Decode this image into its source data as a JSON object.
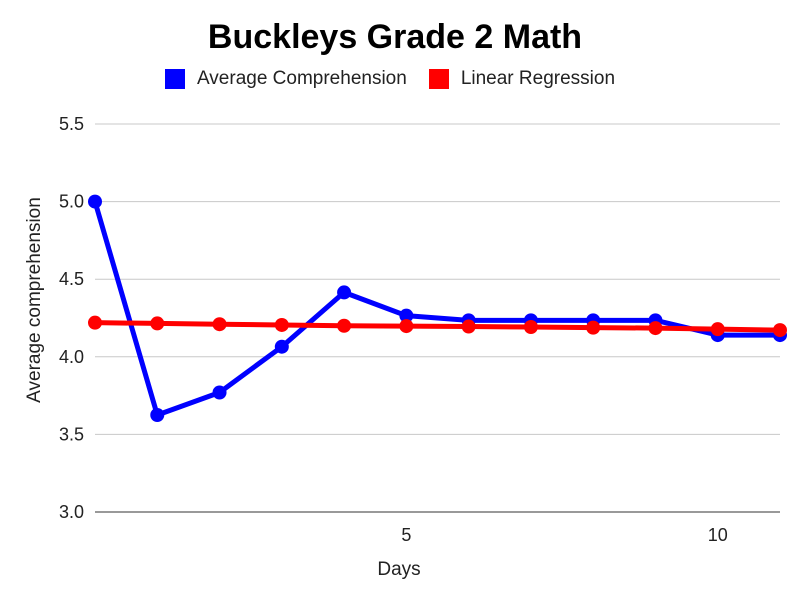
{
  "chart_data": {
    "type": "line",
    "title": "Buckleys Grade 2 Math",
    "xlabel": "Days",
    "ylabel": "Average comprehension",
    "x": [
      0,
      1,
      2,
      3,
      4,
      5,
      6,
      7,
      8,
      9,
      10,
      11
    ],
    "xlim": [
      0,
      11
    ],
    "xticks": [
      5,
      10
    ],
    "ylim": [
      3.0,
      5.5
    ],
    "yticks": [
      "3.0",
      "3.5",
      "4.0",
      "4.5",
      "5.0",
      "5.5"
    ],
    "grid": true,
    "legend_position": "top",
    "series": [
      {
        "name": "Average Comprehension",
        "color": "#0000ff",
        "values": [
          5.0,
          3.625,
          3.77,
          4.065,
          4.415,
          4.265,
          4.235,
          4.235,
          4.235,
          4.235,
          4.14,
          4.14
        ]
      },
      {
        "name": "Linear Regression",
        "color": "#ff0000",
        "values": [
          4.22,
          4.215,
          4.21,
          4.205,
          4.2,
          4.198,
          4.195,
          4.192,
          4.188,
          4.185,
          4.178,
          4.172
        ]
      }
    ]
  }
}
